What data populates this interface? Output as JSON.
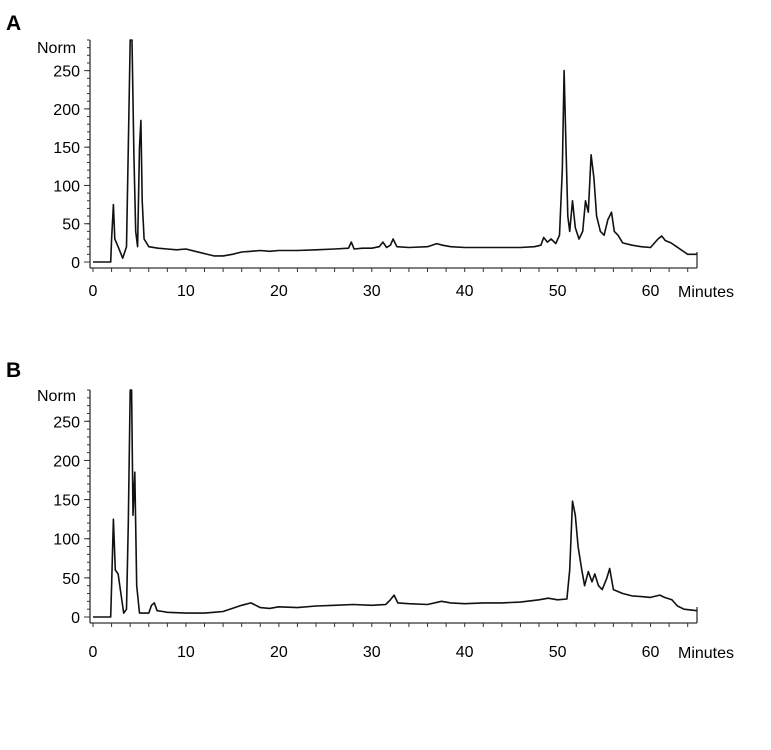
{
  "chart_data": [
    {
      "panel": "A",
      "type": "line",
      "ylabel": "Norm",
      "xlabel": "Minutes",
      "xlim": [
        0,
        65
      ],
      "ylim": [
        0,
        290
      ],
      "xticks": [
        0,
        10,
        20,
        30,
        40,
        50,
        60
      ],
      "yticks": [
        0,
        50,
        100,
        150,
        200,
        250
      ],
      "series": [
        {
          "points": [
            [
              0,
              0
            ],
            [
              1.9,
              0
            ],
            [
              2.0,
              30
            ],
            [
              2.2,
              75
            ],
            [
              2.35,
              30
            ],
            [
              2.7,
              20
            ],
            [
              3.2,
              5
            ],
            [
              3.6,
              20
            ],
            [
              3.8,
              150
            ],
            [
              4.0,
              290
            ],
            [
              4.2,
              290
            ],
            [
              4.4,
              140
            ],
            [
              4.6,
              40
            ],
            [
              4.8,
              20
            ],
            [
              5.0,
              150
            ],
            [
              5.15,
              185
            ],
            [
              5.3,
              80
            ],
            [
              5.5,
              30
            ],
            [
              6.0,
              20
            ],
            [
              7.0,
              18
            ],
            [
              8.0,
              17
            ],
            [
              9.0,
              16
            ],
            [
              10.0,
              17
            ],
            [
              11.0,
              14
            ],
            [
              12.0,
              11
            ],
            [
              13.0,
              8
            ],
            [
              14.0,
              8
            ],
            [
              15.0,
              10
            ],
            [
              16.0,
              13
            ],
            [
              17.0,
              14
            ],
            [
              18.0,
              15
            ],
            [
              19.0,
              14
            ],
            [
              20.0,
              15
            ],
            [
              22.0,
              15
            ],
            [
              24.0,
              16
            ],
            [
              26.0,
              17
            ],
            [
              27.5,
              18
            ],
            [
              27.8,
              26
            ],
            [
              28.1,
              17
            ],
            [
              29.0,
              18
            ],
            [
              30.0,
              18
            ],
            [
              30.8,
              20
            ],
            [
              31.2,
              26
            ],
            [
              31.6,
              19
            ],
            [
              32.0,
              22
            ],
            [
              32.3,
              30
            ],
            [
              32.7,
              20
            ],
            [
              34.0,
              19
            ],
            [
              36.0,
              20
            ],
            [
              37.0,
              24
            ],
            [
              37.6,
              22
            ],
            [
              38.5,
              20
            ],
            [
              40.0,
              19
            ],
            [
              42.0,
              19
            ],
            [
              44.0,
              19
            ],
            [
              46.0,
              19
            ],
            [
              47.5,
              20
            ],
            [
              48.2,
              22
            ],
            [
              48.5,
              32
            ],
            [
              48.9,
              26
            ],
            [
              49.3,
              30
            ],
            [
              49.8,
              24
            ],
            [
              50.2,
              35
            ],
            [
              50.5,
              120
            ],
            [
              50.7,
              250
            ],
            [
              50.9,
              150
            ],
            [
              51.1,
              60
            ],
            [
              51.3,
              40
            ],
            [
              51.6,
              80
            ],
            [
              51.9,
              45
            ],
            [
              52.3,
              30
            ],
            [
              52.7,
              40
            ],
            [
              53.0,
              80
            ],
            [
              53.3,
              65
            ],
            [
              53.6,
              140
            ],
            [
              53.9,
              110
            ],
            [
              54.2,
              60
            ],
            [
              54.6,
              40
            ],
            [
              55.0,
              35
            ],
            [
              55.4,
              55
            ],
            [
              55.8,
              65
            ],
            [
              56.1,
              40
            ],
            [
              56.5,
              35
            ],
            [
              57.0,
              25
            ],
            [
              58.0,
              22
            ],
            [
              59.0,
              20
            ],
            [
              60.0,
              19
            ],
            [
              60.8,
              30
            ],
            [
              61.2,
              34
            ],
            [
              61.6,
              28
            ],
            [
              62.2,
              25
            ],
            [
              62.8,
              20
            ],
            [
              63.4,
              15
            ],
            [
              64.0,
              10
            ],
            [
              65.0,
              10
            ]
          ]
        }
      ]
    },
    {
      "panel": "B",
      "type": "line",
      "ylabel": "Norm",
      "xlabel": "Minutes",
      "xlim": [
        0,
        65
      ],
      "ylim": [
        0,
        290
      ],
      "xticks": [
        0,
        10,
        20,
        30,
        40,
        50,
        60
      ],
      "yticks": [
        0,
        50,
        100,
        150,
        200,
        250
      ],
      "series": [
        {
          "points": [
            [
              0,
              0
            ],
            [
              1.9,
              0
            ],
            [
              2.0,
              40
            ],
            [
              2.2,
              125
            ],
            [
              2.4,
              60
            ],
            [
              2.7,
              55
            ],
            [
              3.0,
              30
            ],
            [
              3.3,
              5
            ],
            [
              3.6,
              10
            ],
            [
              3.8,
              120
            ],
            [
              4.0,
              290
            ],
            [
              4.15,
              290
            ],
            [
              4.3,
              130
            ],
            [
              4.5,
              185
            ],
            [
              4.7,
              40
            ],
            [
              5.0,
              5
            ],
            [
              6.0,
              5
            ],
            [
              6.3,
              15
            ],
            [
              6.6,
              18
            ],
            [
              6.9,
              8
            ],
            [
              7.5,
              7
            ],
            [
              8.0,
              6
            ],
            [
              10.0,
              5
            ],
            [
              12.0,
              5
            ],
            [
              13.0,
              6
            ],
            [
              14.0,
              7
            ],
            [
              15.0,
              11
            ],
            [
              16.0,
              15
            ],
            [
              17.0,
              18
            ],
            [
              18.0,
              12
            ],
            [
              19.0,
              11
            ],
            [
              20.0,
              13
            ],
            [
              22.0,
              12
            ],
            [
              24.0,
              14
            ],
            [
              26.0,
              15
            ],
            [
              28.0,
              16
            ],
            [
              30.0,
              15
            ],
            [
              31.5,
              16
            ],
            [
              32.0,
              22
            ],
            [
              32.4,
              28
            ],
            [
              32.8,
              18
            ],
            [
              34.0,
              17
            ],
            [
              36.0,
              16
            ],
            [
              37.5,
              20
            ],
            [
              38.5,
              18
            ],
            [
              40.0,
              17
            ],
            [
              42.0,
              18
            ],
            [
              44.0,
              18
            ],
            [
              46.0,
              19
            ],
            [
              48.0,
              22
            ],
            [
              49.0,
              24
            ],
            [
              50.0,
              22
            ],
            [
              51.0,
              23
            ],
            [
              51.3,
              60
            ],
            [
              51.6,
              148
            ],
            [
              51.9,
              130
            ],
            [
              52.2,
              90
            ],
            [
              52.6,
              60
            ],
            [
              52.9,
              40
            ],
            [
              53.3,
              58
            ],
            [
              53.7,
              45
            ],
            [
              54.0,
              55
            ],
            [
              54.4,
              40
            ],
            [
              54.8,
              35
            ],
            [
              55.3,
              50
            ],
            [
              55.6,
              62
            ],
            [
              56.0,
              35
            ],
            [
              57.0,
              30
            ],
            [
              58.0,
              27
            ],
            [
              59.0,
              26
            ],
            [
              60.0,
              25
            ],
            [
              61.0,
              28
            ],
            [
              61.5,
              25
            ],
            [
              62.3,
              22
            ],
            [
              62.9,
              14
            ],
            [
              63.6,
              10
            ],
            [
              65.0,
              8
            ]
          ]
        }
      ]
    }
  ],
  "panels": [
    {
      "label": "A",
      "ylabel": "Norm",
      "xlabel": "Minutes"
    },
    {
      "label": "B",
      "ylabel": "Norm",
      "xlabel": "Minutes"
    }
  ]
}
